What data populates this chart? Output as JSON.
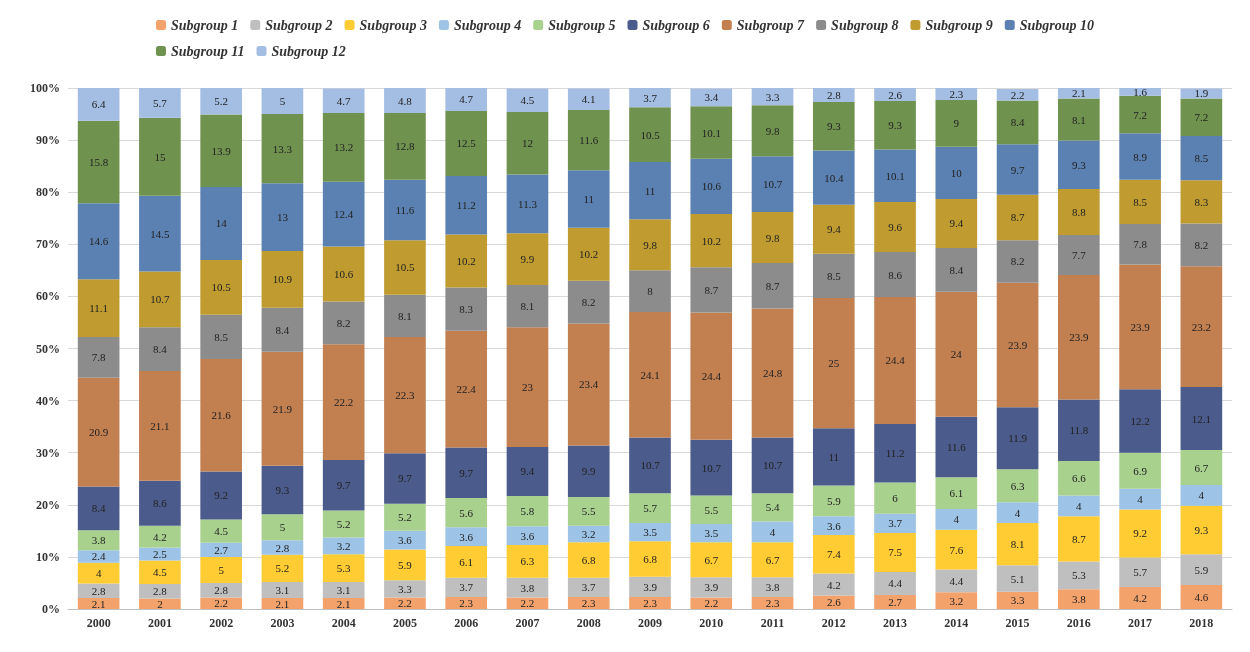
{
  "chart_data": {
    "type": "bar",
    "stacked": true,
    "data_labels": true,
    "grid": "y",
    "legend": "top",
    "categories": [
      "2000",
      "2001",
      "2002",
      "2003",
      "2004",
      "2005",
      "2006",
      "2007",
      "2008",
      "2009",
      "2010",
      "2011",
      "2012",
      "2013",
      "2014",
      "2015",
      "2016",
      "2017",
      "2018"
    ],
    "ylim": [
      0,
      100
    ],
    "yticks": [
      {
        "value": 0,
        "label": "0%"
      },
      {
        "value": 10,
        "label": "10%"
      },
      {
        "value": 20,
        "label": "20%"
      },
      {
        "value": 30,
        "label": "30%"
      },
      {
        "value": 40,
        "label": "40%"
      },
      {
        "value": 50,
        "label": "50%"
      },
      {
        "value": 60,
        "label": "60%"
      },
      {
        "value": 70,
        "label": "70%"
      },
      {
        "value": 80,
        "label": "80%"
      },
      {
        "value": 90,
        "label": "90%"
      },
      {
        "value": 100,
        "label": "100%"
      }
    ],
    "series": [
      {
        "name": "Subgroup 1",
        "color": "#f4a26b",
        "values": [
          2.1,
          2,
          2.2,
          2.1,
          2.1,
          2.2,
          2.3,
          2.2,
          2.3,
          2.3,
          2.2,
          2.3,
          2.6,
          2.7,
          3.2,
          3.3,
          3.8,
          4.2,
          4.6
        ]
      },
      {
        "name": "Subgroup 2",
        "color": "#bfbfbf",
        "values": [
          2.8,
          2.8,
          2.8,
          3.1,
          3.1,
          3.3,
          3.7,
          3.8,
          3.7,
          3.9,
          3.9,
          3.8,
          4.2,
          4.4,
          4.4,
          5.1,
          5.3,
          5.7,
          5.9
        ]
      },
      {
        "name": "Subgroup 3",
        "color": "#ffcc33",
        "values": [
          4,
          4.5,
          5,
          5.2,
          5.3,
          5.9,
          6.1,
          6.3,
          6.8,
          6.8,
          6.7,
          6.7,
          7.4,
          7.5,
          7.6,
          8.1,
          8.7,
          9.2,
          9.3
        ]
      },
      {
        "name": "Subgroup 4",
        "color": "#9dc3e6",
        "values": [
          2.4,
          2.5,
          2.7,
          2.8,
          3.2,
          3.6,
          3.6,
          3.6,
          3.2,
          3.5,
          3.5,
          4,
          3.6,
          3.7,
          4,
          4,
          4,
          4,
          4
        ]
      },
      {
        "name": "Subgroup 5",
        "color": "#a9d18e",
        "values": [
          3.8,
          4.2,
          4.5,
          5,
          5.2,
          5.2,
          5.6,
          5.8,
          5.5,
          5.7,
          5.5,
          5.4,
          5.9,
          6,
          6.1,
          6.3,
          6.6,
          6.9,
          6.7
        ]
      },
      {
        "name": "Subgroup 6",
        "color": "#4b5b8c",
        "values": [
          8.4,
          8.6,
          9.2,
          9.3,
          9.7,
          9.7,
          9.7,
          9.4,
          9.9,
          10.7,
          10.7,
          10.7,
          11,
          11.2,
          11.6,
          11.9,
          11.8,
          12.2,
          12.1
        ]
      },
      {
        "name": "Subgroup 7",
        "color": "#c27f50",
        "values": [
          20.9,
          21.1,
          21.6,
          21.9,
          22.2,
          22.3,
          22.4,
          23,
          23.4,
          24.1,
          24.4,
          24.8,
          25,
          24.4,
          24,
          23.9,
          23.9,
          23.9,
          23.2
        ]
      },
      {
        "name": "Subgroup 8",
        "color": "#8c8c8c",
        "values": [
          7.8,
          8.4,
          8.5,
          8.4,
          8.2,
          8.1,
          8.3,
          8.1,
          8.2,
          8,
          8.7,
          8.7,
          8.5,
          8.6,
          8.4,
          8.2,
          7.7,
          7.8,
          8.2
        ]
      },
      {
        "name": "Subgroup 9",
        "color": "#bf9b30",
        "values": [
          11.1,
          10.7,
          10.5,
          10.9,
          10.6,
          10.5,
          10.2,
          9.9,
          10.2,
          9.8,
          10.2,
          9.8,
          9.4,
          9.6,
          9.4,
          8.7,
          8.8,
          8.5,
          8.3
        ]
      },
      {
        "name": "Subgroup 10",
        "color": "#5b80b2",
        "values": [
          14.6,
          14.5,
          14,
          13,
          12.4,
          11.6,
          11.2,
          11.3,
          11,
          11,
          10.6,
          10.7,
          10.4,
          10.1,
          10,
          9.7,
          9.3,
          8.9,
          8.5
        ]
      },
      {
        "name": "Subgroup 11",
        "color": "#70924f",
        "values": [
          15.8,
          15,
          13.9,
          13.3,
          13.2,
          12.8,
          12.5,
          12,
          11.6,
          10.5,
          10.1,
          9.8,
          9.3,
          9.3,
          9,
          8.4,
          8.1,
          7.2,
          7.2
        ]
      },
      {
        "name": "Subgroup 12",
        "color": "#a3bde3",
        "values": [
          6.4,
          5.7,
          5.2,
          5,
          4.7,
          4.8,
          4.7,
          4.5,
          4.1,
          3.7,
          3.4,
          3.3,
          2.8,
          2.6,
          2.3,
          2.2,
          2.1,
          1.6,
          1.9
        ]
      }
    ]
  }
}
